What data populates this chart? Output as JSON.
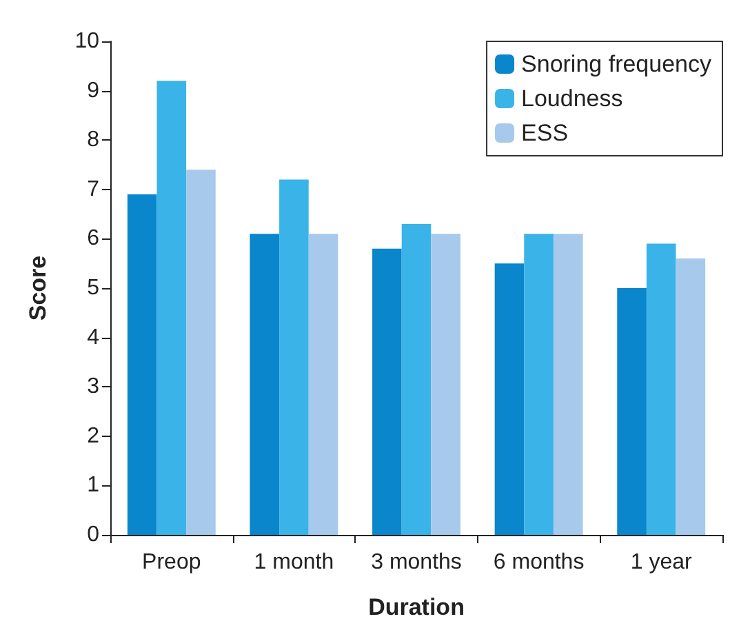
{
  "chart_data": {
    "type": "bar",
    "xlabel": "Duration",
    "ylabel": "Score",
    "categories": [
      "Preop",
      "1 month",
      "3 months",
      "6 months",
      "1 year"
    ],
    "series": [
      {
        "name": "Snoring frequency",
        "color": "#0a86cc",
        "values": [
          6.9,
          6.1,
          5.8,
          5.5,
          5.0
        ]
      },
      {
        "name": "Loudness",
        "color": "#3ab4e8",
        "values": [
          9.2,
          7.2,
          6.3,
          6.1,
          5.9
        ]
      },
      {
        "name": "ESS",
        "color": "#a6c9ec",
        "values": [
          7.4,
          6.1,
          6.1,
          6.1,
          5.6
        ]
      }
    ],
    "ylim": [
      0,
      10
    ],
    "yticks": [
      0,
      1,
      2,
      3,
      4,
      5,
      6,
      7,
      8,
      9,
      10
    ],
    "grid": false,
    "legend": "top right"
  }
}
